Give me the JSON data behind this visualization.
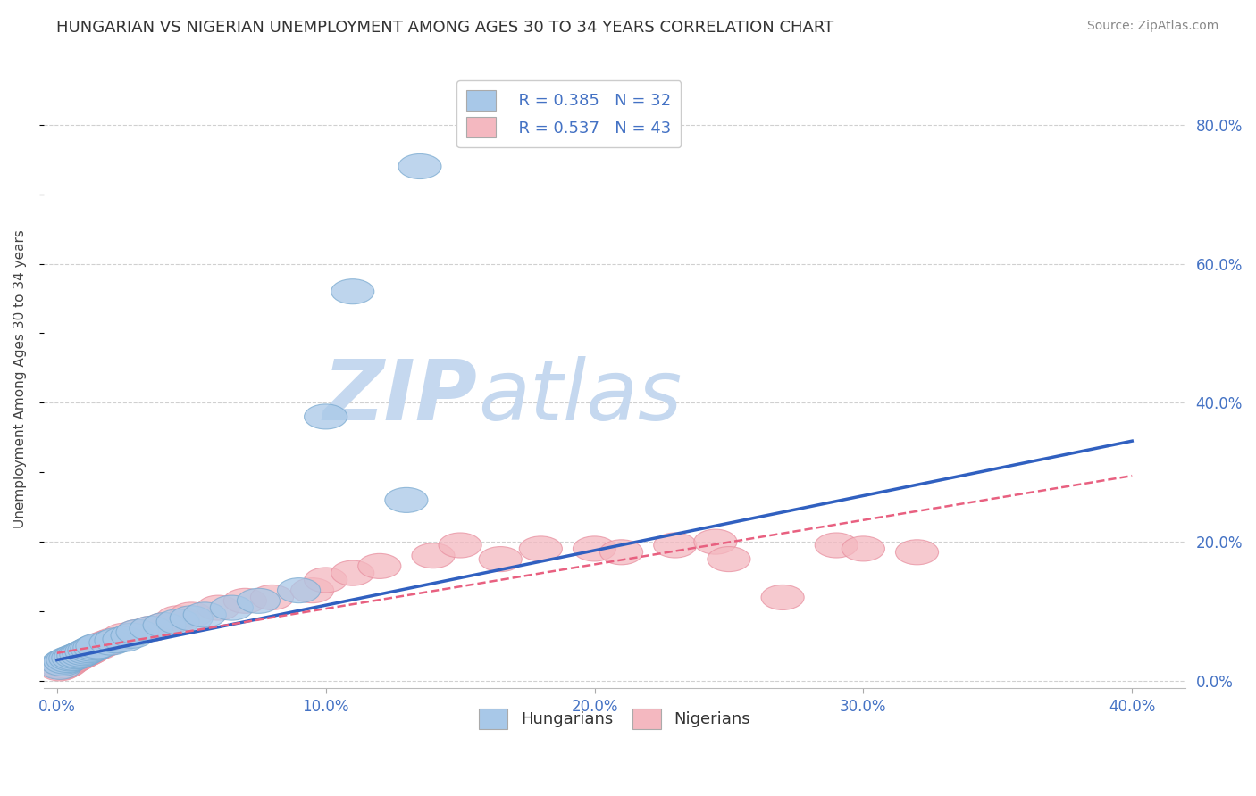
{
  "title": "HUNGARIAN VS NIGERIAN UNEMPLOYMENT AMONG AGES 30 TO 34 YEARS CORRELATION CHART",
  "source": "Source: ZipAtlas.com",
  "ylabel": "Unemployment Among Ages 30 to 34 years",
  "xlim": [
    -0.005,
    0.42
  ],
  "ylim": [
    -0.01,
    0.88
  ],
  "xticks": [
    0.0,
    0.1,
    0.2,
    0.3,
    0.4
  ],
  "yticks_right": [
    0.0,
    0.2,
    0.4,
    0.6,
    0.8
  ],
  "ytick_labels_right": [
    "0.0%",
    "20.0%",
    "40.0%",
    "60.0%",
    "80.0%"
  ],
  "xtick_labels": [
    "0.0%",
    "10.0%",
    "20.0%",
    "30.0%",
    "40.0%"
  ],
  "legend_r_hungarian": "R = 0.385",
  "legend_n_hungarian": "N = 32",
  "legend_r_nigerian": "R = 0.537",
  "legend_n_nigerian": "N = 43",
  "hungarian_color": "#a8c8e8",
  "nigerian_color": "#f4b8c0",
  "hungarian_edge_color": "#7aaad0",
  "nigerian_edge_color": "#e890a0",
  "hungarian_line_color": "#3060c0",
  "nigerian_line_color": "#e86080",
  "watermark_zip_color": "#c5d8ef",
  "watermark_atlas_color": "#c5d8ef",
  "title_color": "#333333",
  "tick_label_color": "#4472c4",
  "grid_color": "#d0d0d0",
  "background_color": "#ffffff",
  "hungarian_scatter_x": [
    0.001,
    0.002,
    0.003,
    0.004,
    0.005,
    0.006,
    0.007,
    0.008,
    0.009,
    0.01,
    0.011,
    0.012,
    0.013,
    0.014,
    0.015,
    0.02,
    0.022,
    0.025,
    0.028,
    0.03,
    0.035,
    0.04,
    0.045,
    0.05,
    0.055,
    0.065,
    0.075,
    0.09,
    0.1,
    0.11,
    0.13,
    0.135
  ],
  "hungarian_scatter_y": [
    0.02,
    0.025,
    0.028,
    0.03,
    0.032,
    0.033,
    0.035,
    0.036,
    0.038,
    0.04,
    0.042,
    0.044,
    0.046,
    0.048,
    0.05,
    0.055,
    0.058,
    0.06,
    0.065,
    0.07,
    0.075,
    0.08,
    0.085,
    0.09,
    0.095,
    0.105,
    0.115,
    0.13,
    0.38,
    0.56,
    0.26,
    0.74
  ],
  "nigerian_scatter_x": [
    0.001,
    0.002,
    0.003,
    0.004,
    0.005,
    0.006,
    0.007,
    0.008,
    0.009,
    0.01,
    0.011,
    0.012,
    0.013,
    0.015,
    0.017,
    0.019,
    0.021,
    0.025,
    0.03,
    0.035,
    0.04,
    0.045,
    0.05,
    0.06,
    0.07,
    0.08,
    0.095,
    0.1,
    0.11,
    0.12,
    0.14,
    0.15,
    0.165,
    0.18,
    0.2,
    0.21,
    0.23,
    0.245,
    0.25,
    0.27,
    0.29,
    0.3,
    0.32
  ],
  "nigerian_scatter_y": [
    0.018,
    0.02,
    0.022,
    0.025,
    0.028,
    0.03,
    0.032,
    0.034,
    0.036,
    0.038,
    0.04,
    0.042,
    0.045,
    0.048,
    0.052,
    0.055,
    0.058,
    0.065,
    0.07,
    0.075,
    0.08,
    0.09,
    0.095,
    0.105,
    0.115,
    0.12,
    0.13,
    0.145,
    0.155,
    0.165,
    0.18,
    0.195,
    0.175,
    0.19,
    0.19,
    0.185,
    0.195,
    0.2,
    0.175,
    0.12,
    0.195,
    0.19,
    0.185
  ],
  "hungarian_trend_x": [
    0.0,
    0.4
  ],
  "hungarian_trend_y": [
    0.03,
    0.345
  ],
  "nigerian_trend_x": [
    0.0,
    0.4
  ],
  "nigerian_trend_y": [
    0.04,
    0.295
  ]
}
